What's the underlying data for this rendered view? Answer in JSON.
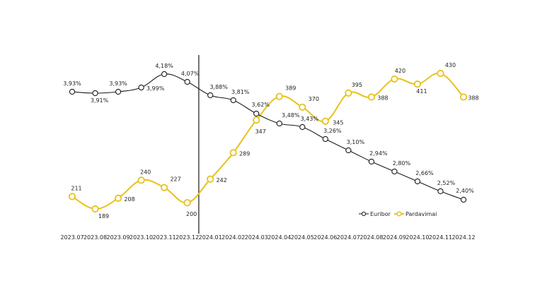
{
  "chart_data": {
    "type": "line",
    "categories": [
      "2023.07",
      "2023.08",
      "2023.09",
      "2023.10",
      "2023.11",
      "2023.12",
      "2024.01",
      "2024.02",
      "2024.03",
      "2024.04",
      "2024.05",
      "2024.06",
      "2024.07",
      "2024.08",
      "2024.09",
      "2024.10",
      "2024.11",
      "2024.12"
    ],
    "series": [
      {
        "name": "Euribor",
        "color": "#1a1a1a",
        "values": [
          3.93,
          3.91,
          3.93,
          3.99,
          4.18,
          4.07,
          3.88,
          3.81,
          3.62,
          3.48,
          3.43,
          3.26,
          3.1,
          2.94,
          2.8,
          2.66,
          2.52,
          2.4
        ],
        "labels": [
          "3,93%",
          "3,91%",
          "3,93%",
          "3,99%",
          "4,18%",
          "4,07%",
          "3,88%",
          "3,81%",
          "3,62%",
          "3,48%",
          "3,43%",
          "3,26%",
          "3,10%",
          "2,94%",
          "2,80%",
          "2,66%",
          "2,52%",
          "2,40%"
        ]
      },
      {
        "name": "Pardavimai",
        "color": "#e8c21a",
        "values": [
          211,
          189,
          208,
          240,
          227,
          200,
          242,
          289,
          347,
          389,
          370,
          345,
          395,
          388,
          420,
          411,
          430,
          388
        ],
        "labels": [
          "211",
          "189",
          "208",
          "240",
          "227",
          "200",
          "242",
          "289",
          "347",
          "389",
          "370",
          "345",
          "395",
          "388",
          "420",
          "411",
          "430",
          "388"
        ]
      }
    ],
    "vertical_marker_between": [
      "2023.12",
      "2024.01"
    ],
    "legend_position": "right, lower",
    "grid": false,
    "title": "",
    "xlabel": "",
    "ylabel": ""
  }
}
